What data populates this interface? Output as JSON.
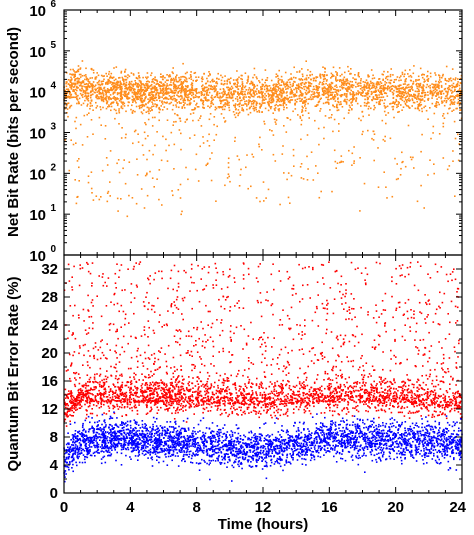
{
  "chart_data": [
    {
      "type": "scatter",
      "panel": "top",
      "title": "",
      "xlabel": "",
      "ylabel": "Net Bit Rate (bits per second)",
      "xlim": [
        0,
        24
      ],
      "ylim": [
        1,
        1000000
      ],
      "y_scale": "log",
      "y_ticks": [
        {
          "base": "10",
          "exp": "0"
        },
        {
          "base": "10",
          "exp": "1"
        },
        {
          "base": "10",
          "exp": "2"
        },
        {
          "base": "10",
          "exp": "3"
        },
        {
          "base": "10",
          "exp": "4"
        },
        {
          "base": "10",
          "exp": "5"
        },
        {
          "base": "10",
          "exp": "6"
        }
      ],
      "y_tick_values": [
        1,
        10,
        100,
        1000,
        10000,
        100000,
        1000000
      ],
      "grid": false,
      "legend": "none",
      "series": [
        {
          "color": "#FF8C1A",
          "trend_x": [
            0,
            0.3,
            0.6,
            1,
            2,
            4,
            6,
            8,
            10,
            12,
            14,
            16,
            18,
            20,
            22,
            24
          ],
          "trend_y": [
            6000,
            12000,
            15000,
            13000,
            11000,
            10000,
            9500,
            9500,
            9000,
            9000,
            10000,
            10000,
            10000,
            11000,
            10000,
            9000
          ],
          "spread_decades": 0.22,
          "outlier_fraction": 0.12,
          "outlier_floor": 8
        }
      ]
    },
    {
      "type": "scatter",
      "panel": "bottom",
      "title": "",
      "xlabel": "Time (hours)",
      "ylabel": "Quantum Bit Error Rate (%)",
      "xlim": [
        0,
        24
      ],
      "ylim": [
        0,
        34
      ],
      "y_scale": "linear",
      "x_ticks": [
        "0",
        "4",
        "8",
        "12",
        "16",
        "20",
        "24"
      ],
      "x_tick_values": [
        0,
        4,
        8,
        12,
        16,
        20,
        24
      ],
      "y_ticks": [
        "0",
        "4",
        "8",
        "12",
        "16",
        "20",
        "24",
        "28",
        "32"
      ],
      "y_tick_values": [
        0,
        4,
        8,
        12,
        16,
        20,
        24,
        28,
        32
      ],
      "grid": false,
      "legend": "none",
      "series": [
        {
          "color": "#FF0000",
          "trend_x": [
            0,
            0.6,
            1,
            4,
            8,
            12,
            16,
            20,
            24
          ],
          "trend_y": [
            11,
            12,
            13,
            13,
            13,
            12.5,
            13,
            13,
            12
          ],
          "core_spread": 1.5,
          "tail_max": 33
        },
        {
          "color": "#0000FF",
          "trend_x": [
            0,
            0.5,
            1,
            4,
            8,
            10,
            12,
            14,
            16,
            20,
            24
          ],
          "trend_y": [
            4.5,
            6,
            7.5,
            7.5,
            7,
            6.5,
            6,
            7,
            7.5,
            7.5,
            7
          ],
          "core_spread": 1.3
        }
      ]
    }
  ]
}
